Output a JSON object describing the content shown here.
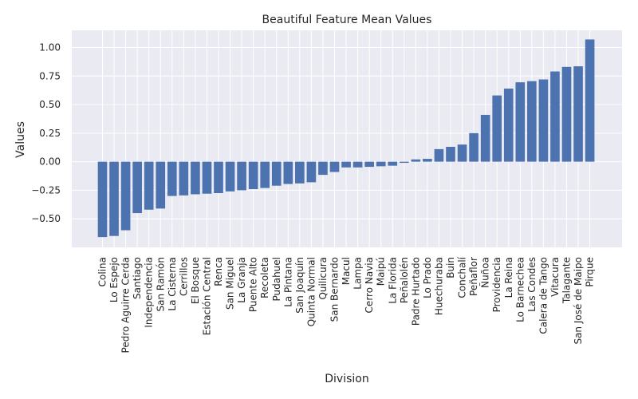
{
  "chart_data": {
    "type": "bar",
    "title": "Beautiful Feature Mean Values",
    "xlabel": "Division",
    "ylabel": "Values",
    "ylim": [
      -0.75,
      1.15
    ],
    "yticks": [
      -0.5,
      -0.25,
      0.0,
      0.25,
      0.5,
      0.75,
      1.0
    ],
    "ytick_labels": [
      "−0.50",
      "−0.25",
      "0.00",
      "0.25",
      "0.50",
      "0.75",
      "1.00"
    ],
    "grid": true,
    "bar_color": "#4c72b0",
    "background_color": "#eaeaf2",
    "categories": [
      "Colina",
      "Lo Espejo",
      "Pedro Aguirre Cerda",
      "Santiago",
      "Independencia",
      "San Ramón",
      "La Cisterna",
      "Cerrillos",
      "El Bosque",
      "Estación Central",
      "Renca",
      "San Miguel",
      "La Granja",
      "Puente Alto",
      "Recoleta",
      "Pudahuel",
      "La Pintana",
      "San Joaquín",
      "Quinta Normal",
      "Quilicura",
      "San Bernardo",
      "Macul",
      "Lampa",
      "Cerro Navia",
      "Maipú",
      "La Florida",
      "Peñalolén",
      "Padre Hurtado",
      "Lo Prado",
      "Huechuraba",
      "Buin",
      "Conchalí",
      "Peñaflor",
      "Ñuñoa",
      "Providencia",
      "La Reina",
      "Lo Barnechea",
      "Las Condes",
      "Calera de Tango",
      "Vitacura",
      "Talagante",
      "San José de Maipo",
      "Pirque"
    ],
    "values": [
      -0.66,
      -0.65,
      -0.6,
      -0.45,
      -0.42,
      -0.41,
      -0.3,
      -0.295,
      -0.285,
      -0.28,
      -0.275,
      -0.26,
      -0.25,
      -0.24,
      -0.23,
      -0.21,
      -0.195,
      -0.19,
      -0.18,
      -0.115,
      -0.09,
      -0.05,
      -0.05,
      -0.045,
      -0.04,
      -0.035,
      -0.01,
      0.02,
      0.025,
      0.11,
      0.13,
      0.15,
      0.25,
      0.41,
      0.58,
      0.64,
      0.695,
      0.705,
      0.72,
      0.79,
      0.83,
      0.835,
      1.07
    ]
  }
}
